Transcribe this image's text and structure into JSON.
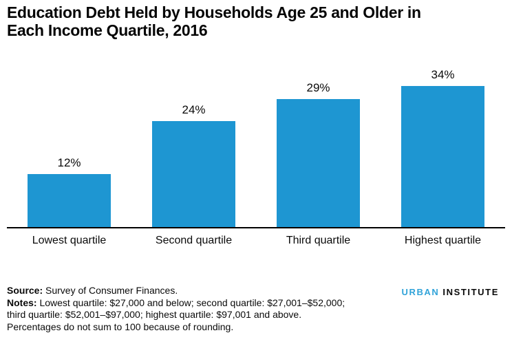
{
  "title": {
    "lines": [
      "Education Debt Held by Households Age 25 and Older in",
      "Each Income Quartile, 2016"
    ]
  },
  "chart_data": {
    "type": "bar",
    "title": "Education Debt Held by Households Age 25 and Older in Each Income Quartile, 2016",
    "categories": [
      "Lowest quartile",
      "Second quartile",
      "Third quartile",
      "Highest quartile"
    ],
    "values": [
      12,
      24,
      29,
      34
    ],
    "value_labels": [
      "12%",
      "24%",
      "29%",
      "34%"
    ],
    "xlabel": "",
    "ylabel": "",
    "ylim": [
      0,
      36
    ],
    "grid": false,
    "legend": "none",
    "bar_color": "#1e96d2",
    "axis_color": "#000000"
  },
  "footer": {
    "source_label": "Source:",
    "source_text": "Survey of Consumer Finances.",
    "notes_label": "Notes:",
    "notes_lines": [
      "Lowest quartile: $27,000 and below; second quartile: $27,001–$52,000;",
      "third quartile: $52,001–$97,000; highest quartile: $97,001 and above.",
      "Percentages do not sum to 100 because of rounding."
    ]
  },
  "logo": {
    "part1": "URBAN",
    "part2": "INSTITUTE"
  },
  "colors": {
    "bar": "#1e96d2",
    "logo_blue": "#31a3d9",
    "axis": "#000000"
  }
}
